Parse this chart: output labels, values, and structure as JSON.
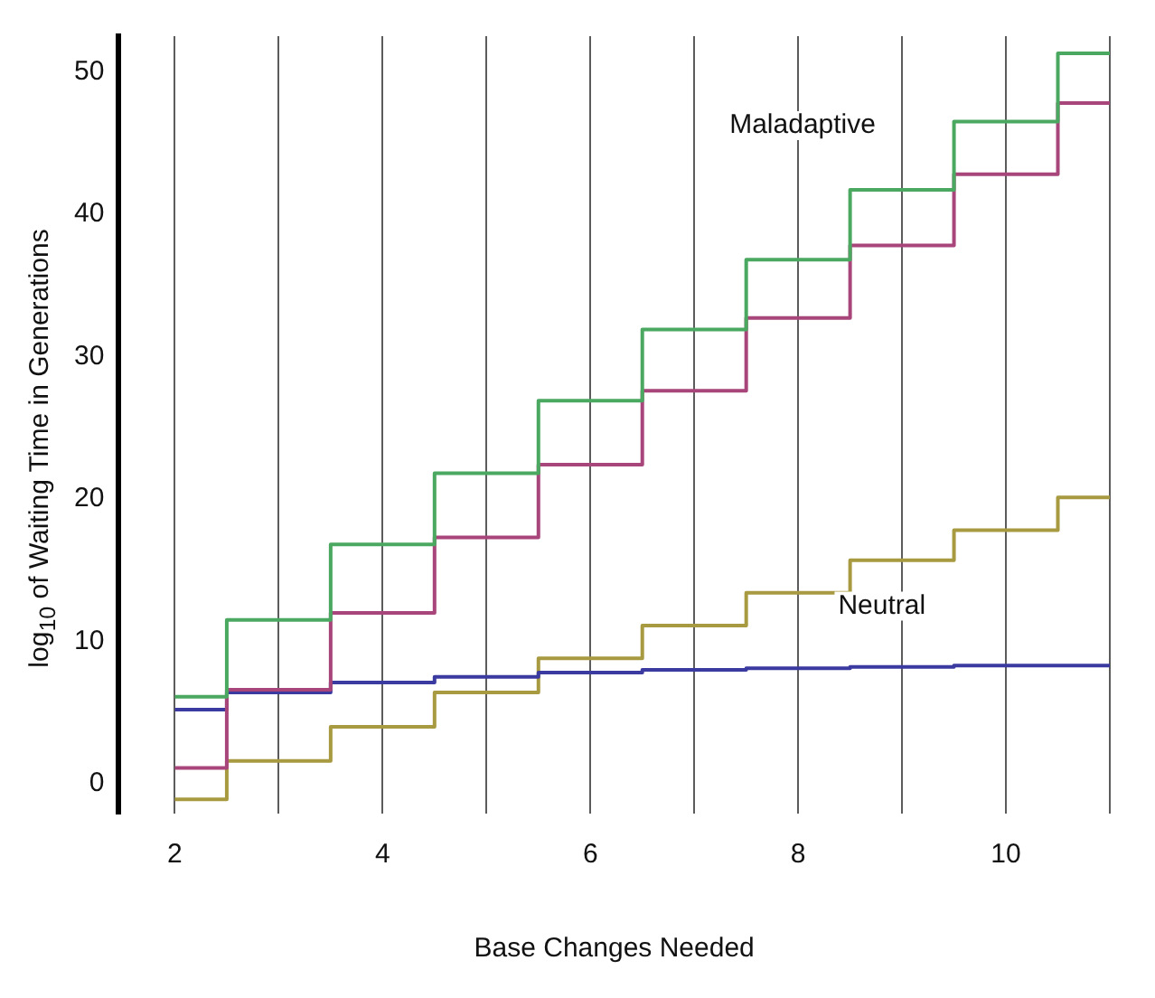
{
  "chart_data": {
    "type": "step",
    "xlabel": "Base Changes Needed",
    "ylabel": "log$_{10}$ of Waiting Time in Generations",
    "x": [
      2,
      3,
      4,
      5,
      6,
      7,
      8,
      9,
      10,
      11
    ],
    "series": [
      {
        "color": "#4aa860",
        "values": [
          6.1,
          11.5,
          16.8,
          21.8,
          26.9,
          31.9,
          36.8,
          41.7,
          46.5,
          51.3
        ]
      },
      {
        "color": "#a8457a",
        "values": [
          1.1,
          6.6,
          12.0,
          17.3,
          22.4,
          27.6,
          32.7,
          37.8,
          42.8,
          47.8
        ]
      },
      {
        "color": "#3a3aa0",
        "values": [
          5.2,
          6.4,
          7.1,
          7.5,
          7.8,
          8.0,
          8.1,
          8.2,
          8.3,
          8.3
        ]
      },
      {
        "color": "#a89a40",
        "values": [
          -1.1,
          1.6,
          4.0,
          6.4,
          8.8,
          11.1,
          13.4,
          15.7,
          17.8,
          20.1
        ]
      }
    ],
    "xlim": [
      1.46,
      11
    ],
    "ylim": [
      -2.1,
      52.5
    ],
    "xticks": [
      2,
      {
        "value": 3,
        "label": null
      },
      4,
      {
        "value": 5,
        "label": null
      },
      6,
      {
        "value": 7,
        "label": null
      },
      8,
      {
        "value": 9,
        "label": null
      },
      10,
      {
        "value": 11,
        "label": null
      }
    ],
    "yticks": [
      0,
      10,
      20,
      30,
      40,
      50
    ],
    "grid": "x",
    "legend": false,
    "annotations": [
      "Maladaptive",
      "Neutral"
    ]
  }
}
